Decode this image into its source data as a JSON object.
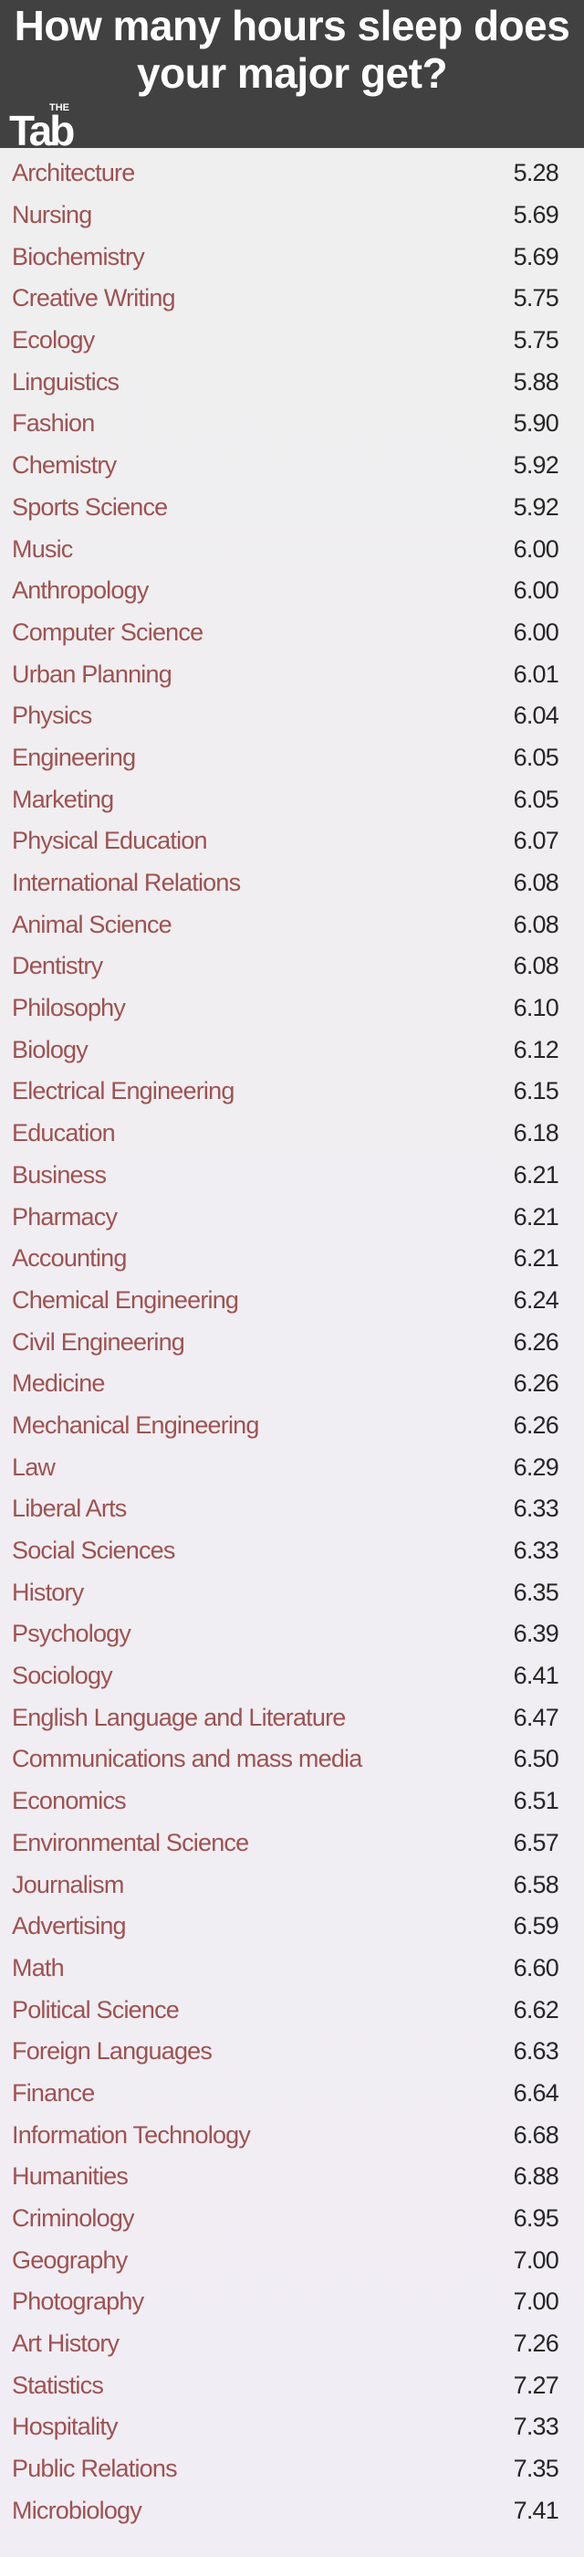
{
  "chart_data": {
    "type": "table",
    "title": "How many hours sleep does your major get?",
    "logo_text": "THE Tab",
    "colors": {
      "header_bg": "#414141",
      "label": "#9e5252",
      "value": "#262626"
    },
    "rows": [
      {
        "label": "Architecture",
        "value": "5.28"
      },
      {
        "label": "Nursing",
        "value": "5.69"
      },
      {
        "label": "Biochemistry",
        "value": "5.69"
      },
      {
        "label": "Creative Writing",
        "value": "5.75"
      },
      {
        "label": "Ecology",
        "value": "5.75"
      },
      {
        "label": "Linguistics",
        "value": "5.88"
      },
      {
        "label": "Fashion",
        "value": "5.90"
      },
      {
        "label": "Chemistry",
        "value": "5.92"
      },
      {
        "label": "Sports Science",
        "value": "5.92"
      },
      {
        "label": "Music",
        "value": "6.00"
      },
      {
        "label": "Anthropology",
        "value": "6.00"
      },
      {
        "label": "Computer Science",
        "value": "6.00"
      },
      {
        "label": "Urban Planning",
        "value": "6.01"
      },
      {
        "label": "Physics",
        "value": "6.04"
      },
      {
        "label": "Engineering",
        "value": "6.05"
      },
      {
        "label": "Marketing",
        "value": "6.05"
      },
      {
        "label": "Physical Education",
        "value": "6.07"
      },
      {
        "label": "International Relations",
        "value": "6.08"
      },
      {
        "label": "Animal Science",
        "value": "6.08"
      },
      {
        "label": "Dentistry",
        "value": "6.08"
      },
      {
        "label": "Philosophy",
        "value": "6.10"
      },
      {
        "label": "Biology",
        "value": "6.12"
      },
      {
        "label": "Electrical Engineering",
        "value": "6.15"
      },
      {
        "label": "Education",
        "value": "6.18"
      },
      {
        "label": "Business",
        "value": "6.21"
      },
      {
        "label": "Pharmacy",
        "value": "6.21"
      },
      {
        "label": "Accounting",
        "value": "6.21"
      },
      {
        "label": "Chemical Engineering",
        "value": "6.24"
      },
      {
        "label": "Civil Engineering",
        "value": "6.26"
      },
      {
        "label": "Medicine",
        "value": "6.26"
      },
      {
        "label": "Mechanical Engineering",
        "value": "6.26"
      },
      {
        "label": "Law",
        "value": "6.29"
      },
      {
        "label": "Liberal Arts",
        "value": "6.33"
      },
      {
        "label": "Social Sciences",
        "value": "6.33"
      },
      {
        "label": "History",
        "value": "6.35"
      },
      {
        "label": "Psychology",
        "value": "6.39"
      },
      {
        "label": "Sociology",
        "value": "6.41"
      },
      {
        "label": "English Language and Literature",
        "value": "6.47"
      },
      {
        "label": "Communications and mass media",
        "value": "6.50"
      },
      {
        "label": "Economics",
        "value": "6.51"
      },
      {
        "label": "Environmental Science",
        "value": "6.57"
      },
      {
        "label": "Journalism",
        "value": "6.58"
      },
      {
        "label": "Advertising",
        "value": "6.59"
      },
      {
        "label": "Math",
        "value": "6.60"
      },
      {
        "label": "Political Science",
        "value": "6.62"
      },
      {
        "label": "Foreign Languages",
        "value": "6.63"
      },
      {
        "label": "Finance",
        "value": "6.64"
      },
      {
        "label": "Information Technology",
        "value": "6.68"
      },
      {
        "label": "Humanities",
        "value": "6.88"
      },
      {
        "label": "Criminology",
        "value": "6.95"
      },
      {
        "label": "Geography",
        "value": "7.00"
      },
      {
        "label": "Photography",
        "value": "7.00"
      },
      {
        "label": "Art History",
        "value": "7.26"
      },
      {
        "label": "Statistics",
        "value": "7.27"
      },
      {
        "label": "Hospitality",
        "value": "7.33"
      },
      {
        "label": "Public Relations",
        "value": "7.35"
      },
      {
        "label": "Microbiology",
        "value": "7.41"
      }
    ]
  }
}
